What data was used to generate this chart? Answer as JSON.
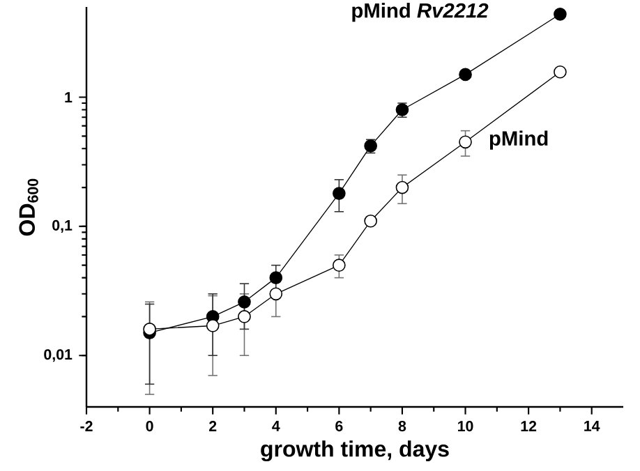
{
  "chart_data": {
    "type": "line",
    "xlabel": "growth time, days",
    "ylabel": "OD$_{600}$",
    "x": [
      0,
      2,
      3,
      4,
      6,
      7,
      8,
      10,
      13
    ],
    "series": [
      {
        "name": "pMind *Rv2212*",
        "color": "#000000",
        "marker": "circle",
        "values": [
          0.015,
          0.02,
          0.026,
          0.04,
          0.18,
          0.42,
          0.8,
          1.5,
          4.4
        ],
        "errors": [
          [
            0.006,
            0.025
          ],
          [
            0.01,
            0.03
          ],
          [
            0.016,
            0.036
          ],
          [
            0.03,
            0.05
          ],
          [
            0.13,
            0.23
          ],
          [
            0.37,
            0.47
          ],
          [
            0.7,
            0.9
          ],
          null,
          null
        ]
      },
      {
        "name": "pMind",
        "color": "#000000",
        "marker": "circle",
        "values": [
          0.016,
          0.017,
          0.02,
          0.03,
          0.05,
          0.11,
          0.2,
          0.45,
          1.57
        ],
        "errors": [
          [
            0.005,
            0.026
          ],
          [
            0.007,
            0.029
          ],
          [
            0.01,
            0.03
          ],
          [
            0.02,
            0.03
          ],
          [
            0.04,
            0.06
          ],
          null,
          [
            0.15,
            0.25
          ],
          [
            0.35,
            0.55
          ],
          null
        ]
      }
    ],
    "log": "y",
    "grid": false,
    "xlim": [
      -2,
      15
    ],
    "xticks": [
      -2,
      0,
      2,
      4,
      6,
      8,
      10,
      12,
      14
    ],
    "ylim": [
      0.004,
      5
    ],
    "yticks": [
      {
        "value": 0.01,
        "label": "0,01"
      },
      {
        "value": 0.1,
        "label": "0,1"
      },
      {
        "value": 1,
        "label": "1"
      }
    ]
  }
}
